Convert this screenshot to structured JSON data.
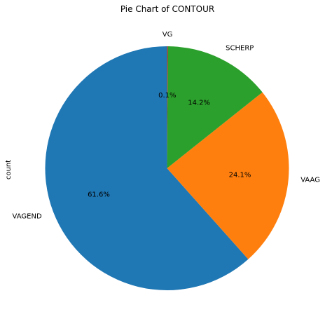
{
  "chart_data": {
    "type": "pie",
    "title": "Pie Chart of CONTOUR",
    "ylabel": "count",
    "start_angle_deg": 90,
    "direction": "counterclockwise",
    "slices": [
      {
        "label": "VAGEND",
        "value": 61.6,
        "pct_label": "61.6%",
        "color": "#1f77b4"
      },
      {
        "label": "VAAG",
        "value": 24.1,
        "pct_label": "24.1%",
        "color": "#ff7f0e"
      },
      {
        "label": "SCHERP",
        "value": 14.2,
        "pct_label": "14.2%",
        "color": "#2ca02c"
      },
      {
        "label": "VG",
        "value": 0.1,
        "pct_label": "0.1%",
        "color": "#d62728"
      }
    ]
  }
}
